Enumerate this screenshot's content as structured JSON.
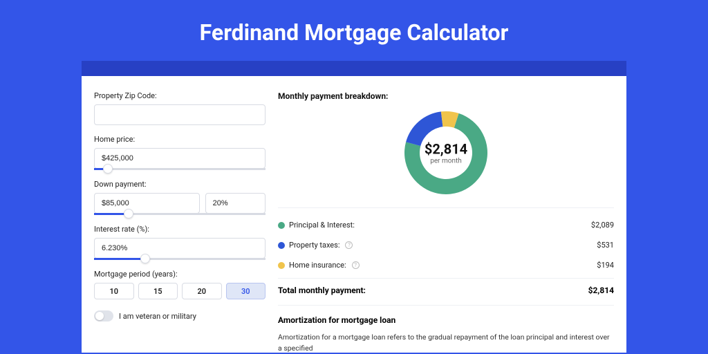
{
  "page": {
    "title": "Ferdinand Mortgage Calculator",
    "background_color": "#3355e8",
    "band_color": "#2740c4",
    "card_background": "#ffffff"
  },
  "form": {
    "zip": {
      "label": "Property Zip Code:",
      "value": ""
    },
    "home_price": {
      "label": "Home price:",
      "value": "$425,000",
      "slider_percent": 8
    },
    "down_payment": {
      "label": "Down payment:",
      "amount": "$85,000",
      "percent": "20%",
      "slider_percent": 20
    },
    "interest_rate": {
      "label": "Interest rate (%):",
      "value": "6.230%",
      "slider_percent": 30
    },
    "mortgage_period": {
      "label": "Mortgage period (years):",
      "options": [
        "10",
        "15",
        "20",
        "30"
      ],
      "selected": "30"
    },
    "veteran": {
      "label": "I am veteran or military",
      "checked": false
    }
  },
  "breakdown": {
    "title": "Monthly payment breakdown:",
    "center_amount": "$2,814",
    "center_sub": "per month",
    "items": [
      {
        "label": "Principal & Interest:",
        "value": "$2,089",
        "color": "#4aa985",
        "help": false
      },
      {
        "label": "Property taxes:",
        "value": "$531",
        "color": "#2e56d6",
        "help": true
      },
      {
        "label": "Home insurance:",
        "value": "$194",
        "color": "#f0c44c",
        "help": true
      }
    ],
    "total_label": "Total monthly payment:",
    "total_value": "$2,814",
    "donut": {
      "type": "pie",
      "slices": [
        {
          "color": "#4aa985",
          "fraction": 0.742
        },
        {
          "color": "#2e56d6",
          "fraction": 0.189
        },
        {
          "color": "#f0c44c",
          "fraction": 0.069
        }
      ],
      "inner_radius": 38,
      "outer_radius": 60,
      "background": "#ffffff"
    }
  },
  "amortization": {
    "title": "Amortization for mortgage loan",
    "text": "Amortization for a mortgage loan refers to the gradual repayment of the loan principal and interest over a specified"
  }
}
